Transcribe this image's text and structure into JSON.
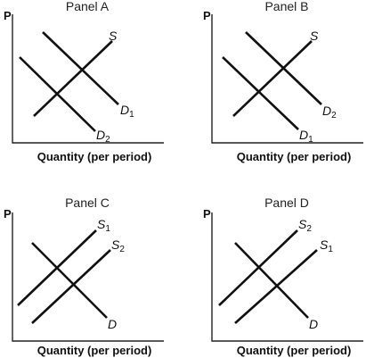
{
  "axis_labels": {
    "price": "P",
    "quantity": "Quantity (per period)"
  },
  "panels": [
    {
      "title": "Panel A",
      "curves": [
        {
          "id": "s",
          "letter": "S",
          "sub": ""
        },
        {
          "id": "d1",
          "letter": "D",
          "sub": "1"
        },
        {
          "id": "d2",
          "letter": "D",
          "sub": "2"
        }
      ]
    },
    {
      "title": "Panel B",
      "curves": [
        {
          "id": "s",
          "letter": "S",
          "sub": ""
        },
        {
          "id": "d2",
          "letter": "D",
          "sub": "2"
        },
        {
          "id": "d1",
          "letter": "D",
          "sub": "1"
        }
      ]
    },
    {
      "title": "Panel C",
      "curves": [
        {
          "id": "s1",
          "letter": "S",
          "sub": "1"
        },
        {
          "id": "s2",
          "letter": "S",
          "sub": "2"
        },
        {
          "id": "d",
          "letter": "D",
          "sub": ""
        }
      ]
    },
    {
      "title": "Panel D",
      "curves": [
        {
          "id": "s2",
          "letter": "S",
          "sub": "2"
        },
        {
          "id": "s1",
          "letter": "S",
          "sub": "1"
        },
        {
          "id": "d",
          "letter": "D",
          "sub": ""
        }
      ]
    }
  ]
}
